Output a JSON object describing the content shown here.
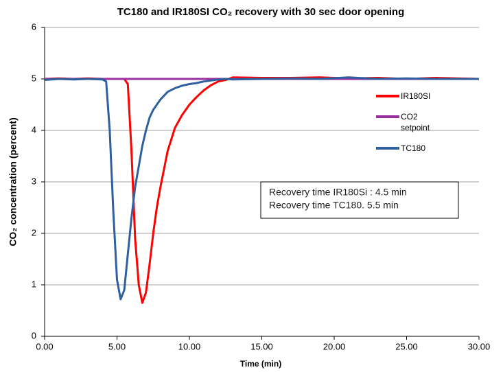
{
  "chart_data": {
    "type": "line",
    "title": "TC180 and IR180SI CO₂ recovery with 30 sec door opening",
    "xlabel": "Time (min)",
    "ylabel": "CO₂ concentration (percent)",
    "x": [
      0,
      1,
      2,
      3,
      4,
      4.25,
      4.5,
      4.75,
      5,
      5.25,
      5.5,
      5.75,
      6,
      6.25,
      6.5,
      6.75,
      7,
      7.25,
      7.5,
      7.75,
      8,
      8.5,
      9,
      9.5,
      10,
      10.5,
      11,
      11.5,
      12,
      12.5,
      13,
      15,
      17,
      19,
      21,
      23,
      25,
      27,
      30
    ],
    "series": [
      {
        "name": "IR180SI",
        "color": "#ff0000",
        "values": [
          5.0,
          5.01,
          5.0,
          5.01,
          5.0,
          5.0,
          5.0,
          5.0,
          5.0,
          5.0,
          5.0,
          4.9,
          3.6,
          1.9,
          1.0,
          0.65,
          0.85,
          1.4,
          2.0,
          2.5,
          2.9,
          3.6,
          4.05,
          4.3,
          4.5,
          4.65,
          4.78,
          4.88,
          4.95,
          4.98,
          5.03,
          5.02,
          5.02,
          5.03,
          5.01,
          5.02,
          5.0,
          5.02,
          5.0
        ]
      },
      {
        "name": "CO2 setpoint",
        "color": "#9b30a0",
        "values": [
          5,
          5,
          5,
          5,
          5,
          5,
          5,
          5,
          5,
          5,
          5,
          5,
          5,
          5,
          5,
          5,
          5,
          5,
          5,
          5,
          5,
          5,
          5,
          5,
          5,
          5,
          5,
          5,
          5,
          5,
          5,
          5,
          5,
          5,
          5,
          5,
          5,
          5,
          5
        ]
      },
      {
        "name": "TC180",
        "color": "#2e5f9e",
        "values": [
          4.98,
          5.0,
          4.99,
          5.0,
          4.99,
          4.95,
          4.0,
          2.4,
          1.1,
          0.72,
          0.9,
          1.6,
          2.3,
          2.9,
          3.3,
          3.7,
          4.0,
          4.25,
          4.4,
          4.5,
          4.6,
          4.75,
          4.82,
          4.87,
          4.9,
          4.92,
          4.95,
          4.97,
          4.99,
          5.0,
          4.99,
          5.0,
          5.01,
          5.0,
          5.03,
          5.0,
          5.01,
          5.0,
          5.0
        ]
      }
    ],
    "xlim": [
      0,
      30
    ],
    "xticks": [
      {
        "value": 0,
        "label": "0.00"
      },
      {
        "value": 5,
        "label": "5.00"
      },
      {
        "value": 10,
        "label": "10.00"
      },
      {
        "value": 15,
        "label": "15.00"
      },
      {
        "value": 20,
        "label": "20.00"
      },
      {
        "value": 25,
        "label": "25.00"
      },
      {
        "value": 30,
        "label": "30.00"
      }
    ],
    "ylim": [
      0,
      6
    ],
    "yticks": [
      0,
      1,
      2,
      3,
      4,
      5,
      6
    ],
    "grid": true,
    "legend": "right",
    "annotations": [
      "Recovery time IR180Si : 4.5 min",
      "Recovery time TC180. 5.5 min"
    ]
  }
}
